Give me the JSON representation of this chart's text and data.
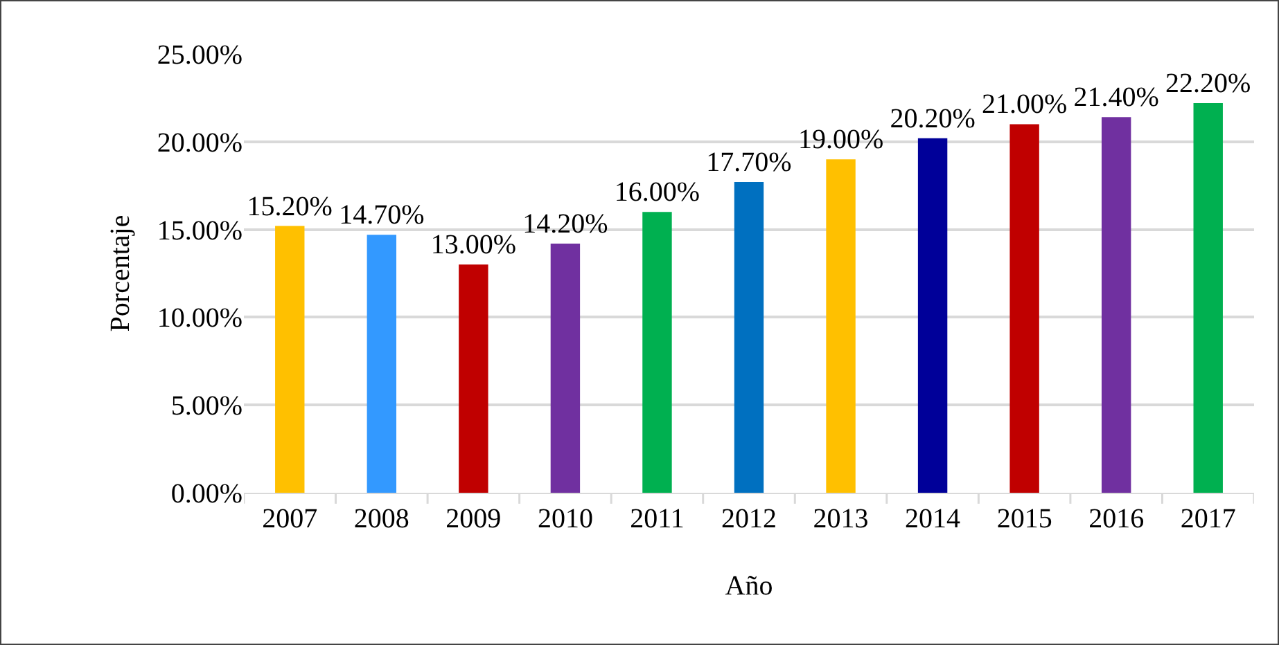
{
  "chart_data": {
    "type": "bar",
    "xlabel": "Año",
    "ylabel": "Porcentaje",
    "categories": [
      "2007",
      "2008",
      "2009",
      "2010",
      "2011",
      "2012",
      "2013",
      "2014",
      "2015",
      "2016",
      "2017"
    ],
    "values": [
      15.2,
      14.7,
      13.0,
      14.2,
      16.0,
      17.7,
      19.0,
      20.2,
      21.0,
      21.4,
      22.2
    ],
    "colors": [
      "#ffc000",
      "#3399ff",
      "#c00000",
      "#7030a0",
      "#00b050",
      "#0070c0",
      "#ffc000",
      "#000099",
      "#c00000",
      "#7030a0",
      "#00b050"
    ],
    "value_labels": [
      "15.20%",
      "14.70%",
      "13.00%",
      "14.20%",
      "16.00%",
      "17.70%",
      "19.00%",
      "20.20%",
      "21.00%",
      "21.40%",
      "22.20%"
    ],
    "ylim": [
      0,
      25
    ],
    "yticks": [
      {
        "value": 0,
        "label": "0.00%"
      },
      {
        "value": 5,
        "label": "5.00%"
      },
      {
        "value": 10,
        "label": "10.00%"
      },
      {
        "value": 15,
        "label": "15.00%"
      },
      {
        "value": 20,
        "label": "20.00%"
      },
      {
        "value": 25,
        "label": "25.00%"
      }
    ],
    "grid": "y"
  }
}
